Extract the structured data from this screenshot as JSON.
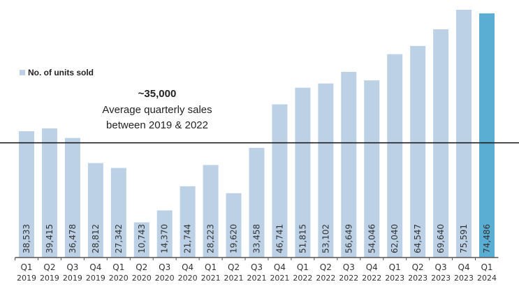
{
  "chart_data": {
    "type": "bar",
    "categories": [
      "Q1 2019",
      "Q2 2019",
      "Q3 2019",
      "Q4 2019",
      "Q1 2020",
      "Q2 2020",
      "Q3 2020",
      "Q4 2020",
      "Q1 2021",
      "Q2 2021",
      "Q3 2021",
      "Q4 2021",
      "Q1 2022",
      "Q2 2022",
      "Q3 2022",
      "Q4 2022",
      "Q1 2023",
      "Q2 2023",
      "Q3 2023",
      "Q4 2023",
      "Q1 2024"
    ],
    "series": [
      {
        "name": "No. of units sold",
        "values": [
          38533,
          39415,
          36478,
          28812,
          27342,
          10743,
          14370,
          21744,
          28223,
          19620,
          33458,
          46741,
          51815,
          53102,
          56649,
          54046,
          62040,
          64547,
          69640,
          75591,
          74486
        ]
      }
    ],
    "data_labels": [
      "38,533",
      "39,415",
      "36,478",
      "28,812",
      "27,342",
      "10,743",
      "14,370",
      "21,744",
      "28,223",
      "19,620",
      "33,458",
      "46,741",
      "51,815",
      "53,102",
      "56,649",
      "54,046",
      "62,040",
      "64,547",
      "69,640",
      "75,591",
      "74,486"
    ],
    "reference_line": {
      "value": 35000,
      "label_value": "~35,000",
      "label_line1": "Average quarterly sales",
      "label_line2": "between 2019 & 2022"
    },
    "legend_position": "top-left",
    "colors": {
      "bar": "#bcd1e6",
      "highlight": "#5aaed3",
      "line": "#111111"
    },
    "highlight_index": 20,
    "grid": false
  }
}
